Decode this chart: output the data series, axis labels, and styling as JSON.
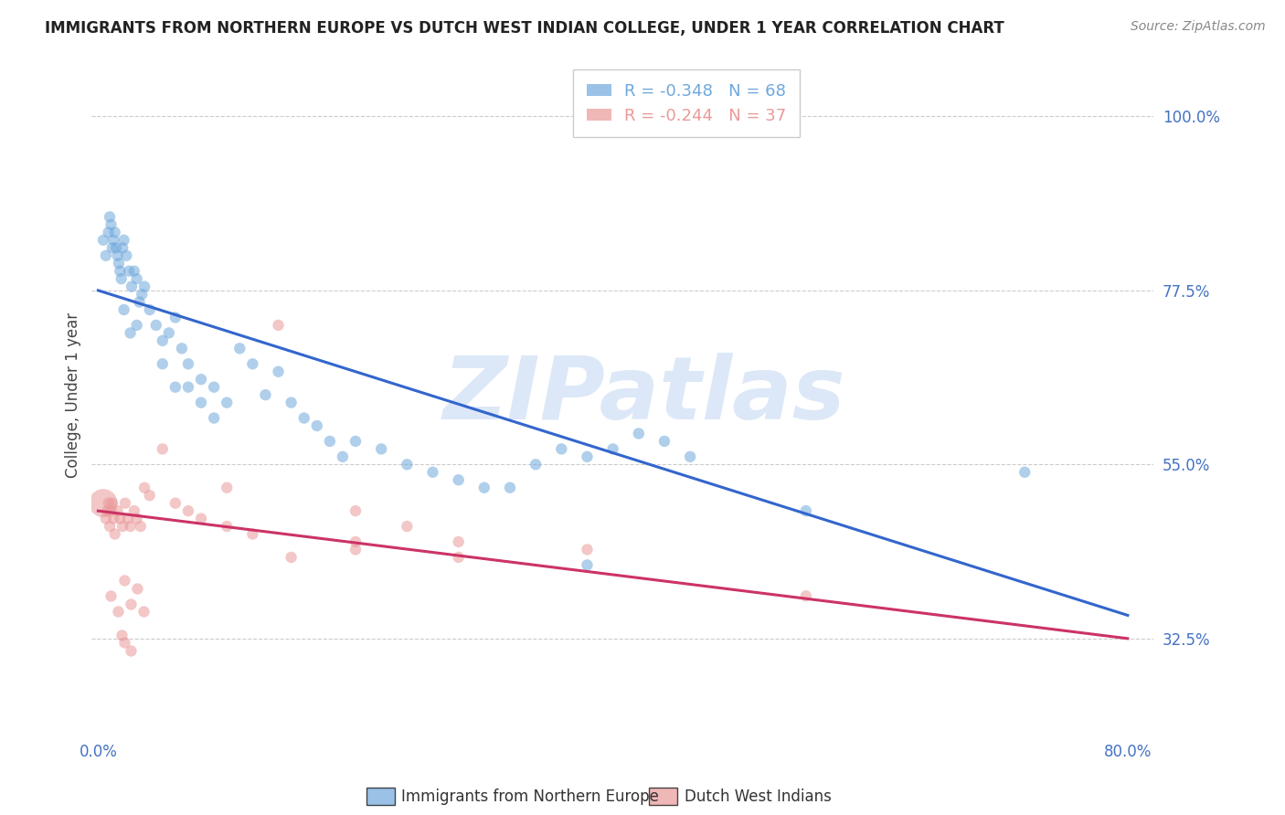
{
  "title": "IMMIGRANTS FROM NORTHERN EUROPE VS DUTCH WEST INDIAN COLLEGE, UNDER 1 YEAR CORRELATION CHART",
  "source": "Source: ZipAtlas.com",
  "ylabel": "College, Under 1 year",
  "legend1_label": "Immigrants from Northern Europe",
  "legend2_label": "Dutch West Indians",
  "R1": -0.348,
  "N1": 68,
  "R2": -0.244,
  "N2": 37,
  "blue_color": "#6fa8dc",
  "pink_color": "#ea9999",
  "blue_line_color": "#3366cc",
  "pink_line_color": "#cc3366",
  "watermark": "ZIPatlas",
  "watermark_color": "#dce8f8",
  "background_color": "#ffffff",
  "blue_scatter_x": [
    0.004,
    0.006,
    0.008,
    0.009,
    0.01,
    0.011,
    0.012,
    0.013,
    0.014,
    0.015,
    0.016,
    0.017,
    0.018,
    0.019,
    0.02,
    0.022,
    0.024,
    0.026,
    0.028,
    0.03,
    0.032,
    0.034,
    0.036,
    0.04,
    0.045,
    0.05,
    0.055,
    0.06,
    0.065,
    0.07,
    0.08,
    0.09,
    0.1,
    0.11,
    0.12,
    0.13,
    0.14,
    0.15,
    0.16,
    0.17,
    0.18,
    0.19,
    0.2,
    0.22,
    0.24,
    0.26,
    0.28,
    0.3,
    0.32,
    0.34,
    0.36,
    0.38,
    0.4,
    0.42,
    0.44,
    0.46,
    0.02,
    0.025,
    0.03,
    0.05,
    0.06,
    0.07,
    0.08,
    0.09,
    0.55,
    0.72,
    0.38,
    0.38
  ],
  "blue_scatter_y": [
    0.84,
    0.82,
    0.85,
    0.87,
    0.86,
    0.83,
    0.84,
    0.85,
    0.83,
    0.82,
    0.81,
    0.8,
    0.79,
    0.83,
    0.84,
    0.82,
    0.8,
    0.78,
    0.8,
    0.79,
    0.76,
    0.77,
    0.78,
    0.75,
    0.73,
    0.71,
    0.72,
    0.74,
    0.7,
    0.68,
    0.66,
    0.65,
    0.63,
    0.7,
    0.68,
    0.64,
    0.67,
    0.63,
    0.61,
    0.6,
    0.58,
    0.56,
    0.58,
    0.57,
    0.55,
    0.54,
    0.53,
    0.52,
    0.52,
    0.55,
    0.57,
    0.56,
    0.57,
    0.59,
    0.58,
    0.56,
    0.75,
    0.72,
    0.73,
    0.68,
    0.65,
    0.65,
    0.63,
    0.61,
    0.49,
    0.54,
    0.42,
    1.0
  ],
  "blue_scatter_sizes": [
    80,
    80,
    80,
    80,
    80,
    80,
    80,
    80,
    80,
    80,
    80,
    80,
    80,
    80,
    80,
    80,
    80,
    80,
    80,
    80,
    80,
    80,
    80,
    80,
    80,
    80,
    80,
    80,
    80,
    80,
    80,
    80,
    80,
    80,
    80,
    80,
    80,
    80,
    80,
    80,
    80,
    80,
    80,
    80,
    80,
    80,
    80,
    80,
    80,
    80,
    80,
    80,
    80,
    80,
    80,
    80,
    80,
    80,
    80,
    80,
    80,
    80,
    80,
    80,
    80,
    80,
    80,
    500
  ],
  "pink_scatter_x": [
    0.004,
    0.006,
    0.007,
    0.008,
    0.009,
    0.01,
    0.011,
    0.012,
    0.013,
    0.015,
    0.017,
    0.019,
    0.021,
    0.023,
    0.025,
    0.028,
    0.03,
    0.033,
    0.036,
    0.04,
    0.05,
    0.06,
    0.07,
    0.08,
    0.1,
    0.12,
    0.15,
    0.2,
    0.28,
    0.38,
    0.55,
    0.2,
    0.24,
    0.28,
    0.1,
    0.14,
    0.2
  ],
  "pink_scatter_y": [
    0.5,
    0.48,
    0.49,
    0.5,
    0.47,
    0.49,
    0.5,
    0.48,
    0.46,
    0.49,
    0.48,
    0.47,
    0.5,
    0.48,
    0.47,
    0.49,
    0.48,
    0.47,
    0.52,
    0.51,
    0.57,
    0.5,
    0.49,
    0.48,
    0.47,
    0.46,
    0.43,
    0.45,
    0.43,
    0.44,
    0.38,
    0.49,
    0.47,
    0.45,
    0.52,
    0.73,
    0.44
  ],
  "pink_scatter_sizes": [
    500,
    80,
    80,
    80,
    80,
    80,
    80,
    80,
    80,
    80,
    80,
    80,
    80,
    80,
    80,
    80,
    80,
    80,
    80,
    80,
    80,
    80,
    80,
    80,
    80,
    80,
    80,
    80,
    80,
    80,
    80,
    80,
    80,
    80,
    80,
    80,
    80
  ],
  "pink_extra_low_x": [
    0.01,
    0.015,
    0.02,
    0.025,
    0.03,
    0.035,
    0.02,
    0.025,
    0.018
  ],
  "pink_extra_low_y": [
    0.38,
    0.36,
    0.4,
    0.37,
    0.39,
    0.36,
    0.32,
    0.31,
    0.33
  ],
  "blue_line_x0": 0.0,
  "blue_line_x1": 0.8,
  "blue_line_y0": 0.775,
  "blue_line_y1": 0.355,
  "pink_line_x0": 0.0,
  "pink_line_x1": 0.8,
  "pink_line_y0": 0.49,
  "pink_line_y1": 0.325,
  "xlim": [
    -0.005,
    0.82
  ],
  "ylim": [
    0.2,
    1.08
  ],
  "ytick_vals": [
    1.0,
    0.775,
    0.55,
    0.325
  ],
  "ytick_labels": [
    "100.0%",
    "77.5%",
    "55.0%",
    "32.5%"
  ],
  "xtick_vals": [
    0.0,
    0.2,
    0.4,
    0.6,
    0.8
  ],
  "xtick_labels": [
    "0.0%",
    "",
    "",
    "",
    "80.0%"
  ]
}
